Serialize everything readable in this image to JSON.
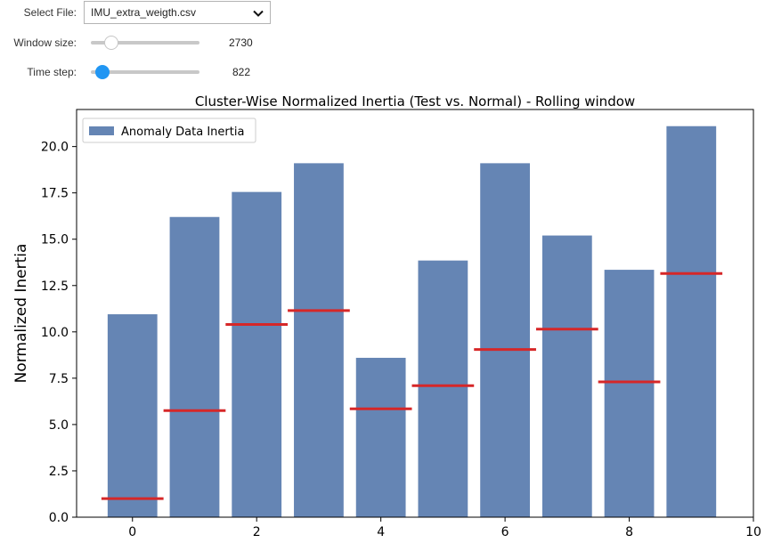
{
  "controls": {
    "file": {
      "label": "Select File:",
      "value": "IMU_extra_weigth.csv"
    },
    "window": {
      "label": "Window size:",
      "value": "2730",
      "level": 0.14
    },
    "time": {
      "label": "Time step:",
      "value": "822",
      "level": 0.05
    }
  },
  "colors": {
    "bar": "#6585b4",
    "threshold": "#d62728",
    "accent": "#2196f3"
  },
  "icons": {
    "dropdown": "chevron-down-icon"
  },
  "chart_data": {
    "type": "bar",
    "title": "Cluster-Wise Normalized Inertia (Test vs. Normal) - Rolling window",
    "xlabel": "",
    "ylabel": "Normalized Inertia",
    "x": [
      0,
      1,
      2,
      3,
      4,
      5,
      6,
      7,
      8,
      9
    ],
    "series": [
      {
        "name": "Anomaly Data Inertia",
        "values": [
          10.95,
          16.2,
          17.55,
          19.1,
          8.6,
          13.85,
          19.1,
          15.2,
          13.35,
          21.1
        ]
      }
    ],
    "thresholds": [
      1.0,
      5.75,
      10.4,
      11.15,
      5.85,
      7.1,
      9.05,
      10.15,
      7.3,
      13.15
    ],
    "xlim": [
      -0.9,
      10
    ],
    "ylim": [
      0,
      22
    ],
    "xticks": [
      "0",
      "2",
      "4",
      "6",
      "8",
      "10"
    ],
    "xtick_values": [
      0,
      2,
      4,
      6,
      8,
      10
    ],
    "yticks": [
      "0.0",
      "2.5",
      "5.0",
      "7.5",
      "10.0",
      "12.5",
      "15.0",
      "17.5",
      "20.0"
    ],
    "ytick_values": [
      0,
      2.5,
      5,
      7.5,
      10,
      12.5,
      15,
      17.5,
      20
    ],
    "legend": "upper-left",
    "grid": false
  }
}
